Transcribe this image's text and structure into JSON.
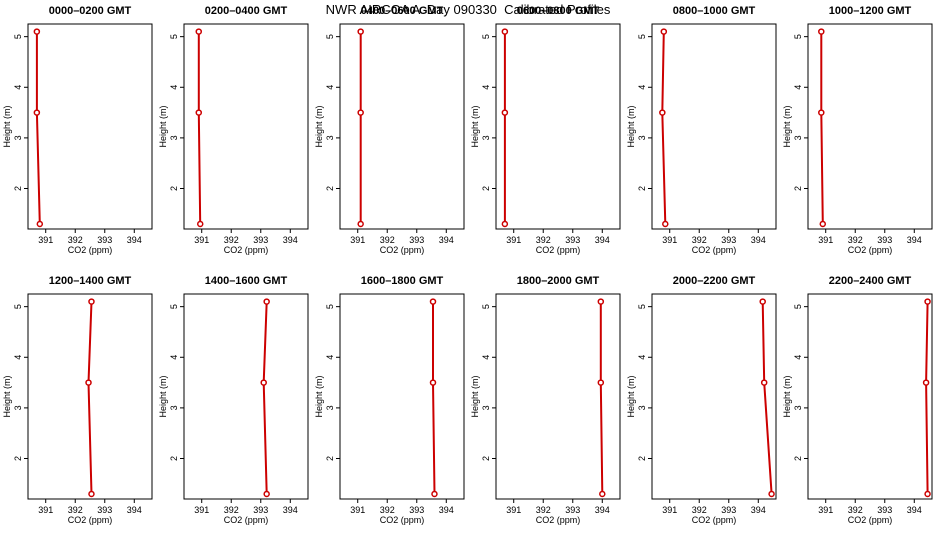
{
  "title": "NWR AIRCOA A  Day 090330  Calibrated Profiles",
  "chart_data": [
    {
      "type": "line",
      "title": "0000–0200 GMT",
      "xlabel": "CO2 (ppm)",
      "ylabel": "Height (m)",
      "xlim": [
        390.4,
        394.6
      ],
      "ylim": [
        1.2,
        5.25
      ],
      "x_ticks": [
        "391",
        "392",
        "393",
        "394"
      ],
      "y_ticks": [
        "2",
        "3",
        "4",
        "5"
      ],
      "grid": false,
      "line_color": "#cc0000",
      "points": [
        {
          "x": 390.8,
          "y": 1.3
        },
        {
          "x": 390.7,
          "y": 3.5
        },
        {
          "x": 390.7,
          "y": 5.1
        }
      ]
    },
    {
      "type": "line",
      "title": "0200–0400 GMT",
      "xlabel": "CO2 (ppm)",
      "ylabel": "Height (m)",
      "xlim": [
        390.4,
        394.6
      ],
      "ylim": [
        1.2,
        5.25
      ],
      "x_ticks": [
        "391",
        "392",
        "393",
        "394"
      ],
      "y_ticks": [
        "2",
        "3",
        "4",
        "5"
      ],
      "grid": false,
      "line_color": "#cc0000",
      "points": [
        {
          "x": 390.95,
          "y": 1.3
        },
        {
          "x": 390.9,
          "y": 3.5
        },
        {
          "x": 390.9,
          "y": 5.1
        }
      ]
    },
    {
      "type": "line",
      "title": "0400–0600 GMT",
      "xlabel": "CO2 (ppm)",
      "ylabel": "Height (m)",
      "xlim": [
        390.4,
        394.6
      ],
      "ylim": [
        1.2,
        5.25
      ],
      "x_ticks": [
        "391",
        "392",
        "393",
        "394"
      ],
      "y_ticks": [
        "2",
        "3",
        "4",
        "5"
      ],
      "grid": false,
      "line_color": "#cc0000",
      "points": [
        {
          "x": 391.1,
          "y": 1.3
        },
        {
          "x": 391.1,
          "y": 3.5
        },
        {
          "x": 391.1,
          "y": 5.1
        }
      ]
    },
    {
      "type": "line",
      "title": "0600–0800 GMT",
      "xlabel": "CO2 (ppm)",
      "ylabel": "Height (m)",
      "xlim": [
        390.4,
        394.6
      ],
      "ylim": [
        1.2,
        5.25
      ],
      "x_ticks": [
        "391",
        "392",
        "393",
        "394"
      ],
      "y_ticks": [
        "2",
        "3",
        "4",
        "5"
      ],
      "grid": false,
      "line_color": "#cc0000",
      "points": [
        {
          "x": 390.7,
          "y": 1.3
        },
        {
          "x": 390.7,
          "y": 3.5
        },
        {
          "x": 390.7,
          "y": 5.1
        }
      ]
    },
    {
      "type": "line",
      "title": "0800–1000 GMT",
      "xlabel": "CO2 (ppm)",
      "ylabel": "Height (m)",
      "xlim": [
        390.4,
        394.6
      ],
      "ylim": [
        1.2,
        5.25
      ],
      "x_ticks": [
        "391",
        "392",
        "393",
        "394"
      ],
      "y_ticks": [
        "2",
        "3",
        "4",
        "5"
      ],
      "grid": false,
      "line_color": "#cc0000",
      "points": [
        {
          "x": 390.85,
          "y": 1.3
        },
        {
          "x": 390.75,
          "y": 3.5
        },
        {
          "x": 390.8,
          "y": 5.1
        }
      ]
    },
    {
      "type": "line",
      "title": "1000–1200 GMT",
      "xlabel": "CO2 (ppm)",
      "ylabel": "Height (m)",
      "xlim": [
        390.4,
        394.6
      ],
      "ylim": [
        1.2,
        5.25
      ],
      "x_ticks": [
        "391",
        "392",
        "393",
        "394"
      ],
      "y_ticks": [
        "2",
        "3",
        "4",
        "5"
      ],
      "grid": false,
      "line_color": "#cc0000",
      "points": [
        {
          "x": 390.9,
          "y": 1.3
        },
        {
          "x": 390.85,
          "y": 3.5
        },
        {
          "x": 390.85,
          "y": 5.1
        }
      ]
    },
    {
      "type": "line",
      "title": "1200–1400 GMT",
      "xlabel": "CO2 (ppm)",
      "ylabel": "Height (m)",
      "xlim": [
        390.4,
        394.6
      ],
      "ylim": [
        1.2,
        5.25
      ],
      "x_ticks": [
        "391",
        "392",
        "393",
        "394"
      ],
      "y_ticks": [
        "2",
        "3",
        "4",
        "5"
      ],
      "grid": false,
      "line_color": "#cc0000",
      "points": [
        {
          "x": 392.55,
          "y": 1.3
        },
        {
          "x": 392.45,
          "y": 3.5
        },
        {
          "x": 392.55,
          "y": 5.1
        }
      ]
    },
    {
      "type": "line",
      "title": "1400–1600 GMT",
      "xlabel": "CO2 (ppm)",
      "ylabel": "Height (m)",
      "xlim": [
        390.4,
        394.6
      ],
      "ylim": [
        1.2,
        5.25
      ],
      "x_ticks": [
        "391",
        "392",
        "393",
        "394"
      ],
      "y_ticks": [
        "2",
        "3",
        "4",
        "5"
      ],
      "grid": false,
      "line_color": "#cc0000",
      "points": [
        {
          "x": 393.2,
          "y": 1.3
        },
        {
          "x": 393.1,
          "y": 3.5
        },
        {
          "x": 393.2,
          "y": 5.1
        }
      ]
    },
    {
      "type": "line",
      "title": "1600–1800 GMT",
      "xlabel": "CO2 (ppm)",
      "ylabel": "Height (m)",
      "xlim": [
        390.4,
        394.6
      ],
      "ylim": [
        1.2,
        5.25
      ],
      "x_ticks": [
        "391",
        "392",
        "393",
        "394"
      ],
      "y_ticks": [
        "2",
        "3",
        "4",
        "5"
      ],
      "grid": false,
      "line_color": "#cc0000",
      "points": [
        {
          "x": 393.6,
          "y": 1.3
        },
        {
          "x": 393.55,
          "y": 3.5
        },
        {
          "x": 393.55,
          "y": 5.1
        }
      ]
    },
    {
      "type": "line",
      "title": "1800–2000 GMT",
      "xlabel": "CO2 (ppm)",
      "ylabel": "Height (m)",
      "xlim": [
        390.4,
        394.6
      ],
      "ylim": [
        1.2,
        5.25
      ],
      "x_ticks": [
        "391",
        "392",
        "393",
        "394"
      ],
      "y_ticks": [
        "2",
        "3",
        "4",
        "5"
      ],
      "grid": false,
      "line_color": "#cc0000",
      "points": [
        {
          "x": 394.0,
          "y": 1.3
        },
        {
          "x": 393.95,
          "y": 3.5
        },
        {
          "x": 393.95,
          "y": 5.1
        }
      ]
    },
    {
      "type": "line",
      "title": "2000–2200 GMT",
      "xlabel": "CO2 (ppm)",
      "ylabel": "Height (m)",
      "xlim": [
        390.4,
        394.6
      ],
      "ylim": [
        1.2,
        5.25
      ],
      "x_ticks": [
        "391",
        "392",
        "393",
        "394"
      ],
      "y_ticks": [
        "2",
        "3",
        "4",
        "5"
      ],
      "grid": false,
      "line_color": "#cc0000",
      "points": [
        {
          "x": 394.45,
          "y": 1.3
        },
        {
          "x": 394.2,
          "y": 3.5
        },
        {
          "x": 394.15,
          "y": 5.1
        }
      ]
    },
    {
      "type": "line",
      "title": "2200–2400 GMT",
      "xlabel": "CO2 (ppm)",
      "ylabel": "Height (m)",
      "xlim": [
        390.4,
        394.6
      ],
      "ylim": [
        1.2,
        5.25
      ],
      "x_ticks": [
        "391",
        "392",
        "393",
        "394"
      ],
      "y_ticks": [
        "2",
        "3",
        "4",
        "5"
      ],
      "grid": false,
      "line_color": "#cc0000",
      "points": [
        {
          "x": 394.45,
          "y": 1.3
        },
        {
          "x": 394.4,
          "y": 3.5
        },
        {
          "x": 394.45,
          "y": 5.1
        }
      ]
    }
  ]
}
